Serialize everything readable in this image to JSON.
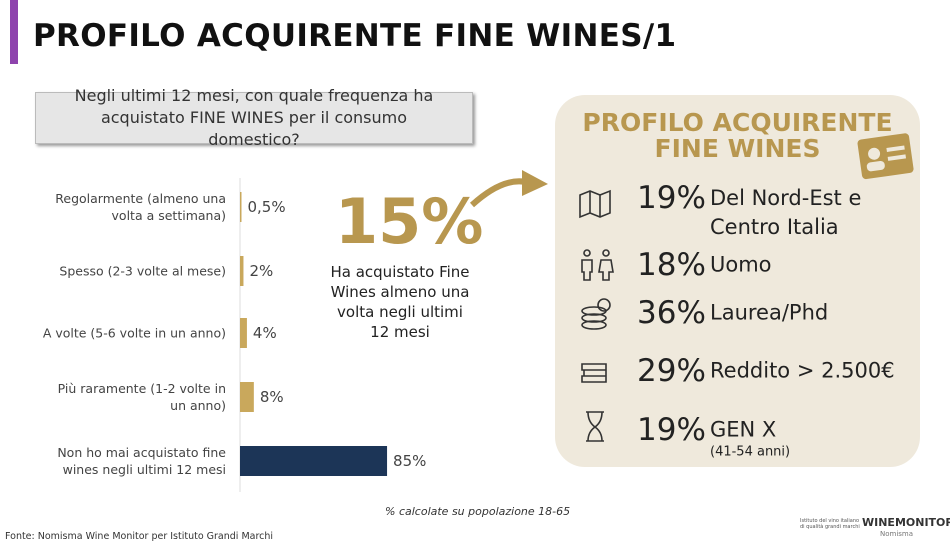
{
  "header": {
    "title": "PROFILO ACQUIRENTE FINE WINES/1"
  },
  "question": "Negli ultimi 12 mesi, con quale frequenza ha acquistato FINE WINES per il consumo domestico?",
  "chart_data": {
    "type": "bar",
    "orientation": "horizontal",
    "categories": [
      "Regolarmente (almeno una volta a settimana)",
      "Spesso (2-3 volte al mese)",
      "A volte (5-6 volte in un anno)",
      "Più raramente (1-2 volte in un anno)",
      "Non ho mai acquistato fine wines negli ultimi 12 mesi"
    ],
    "values": [
      0.5,
      2,
      4,
      8,
      85
    ],
    "value_labels": [
      "0,5%",
      "2%",
      "4%",
      "8%",
      "85%"
    ],
    "colors": [
      "#c9a85c",
      "#c9a85c",
      "#c9a85c",
      "#c9a85c",
      "#1c3557"
    ]
  },
  "highlight": {
    "value": "15%",
    "text": "Ha acquistato Fine Wines almeno una volta negli ultimi 12 mesi"
  },
  "profile": {
    "title": "PROFILO ACQUIRENTE FINE WINES",
    "items": [
      {
        "value": "19%",
        "label": "Del Nord-Est e Centro Italia"
      },
      {
        "value": "18%",
        "label": "Uomo"
      },
      {
        "value": "36%",
        "label": "Laurea/Phd"
      },
      {
        "value": "29%",
        "label": "Reddito > 2.500€"
      },
      {
        "value": "19%",
        "label": "GEN X",
        "sublabel": "(41-54 anni)"
      }
    ]
  },
  "note": "% calcolate su popolazione 18-65",
  "source": "Fonte: Nomisma Wine Monitor per Istituto Grandi Marchi",
  "logos": {
    "istituto": "Istituto del vino italiano di qualità grandi marchi",
    "brand": "WINEMONITOR",
    "brand_sub": "Nomisma"
  }
}
